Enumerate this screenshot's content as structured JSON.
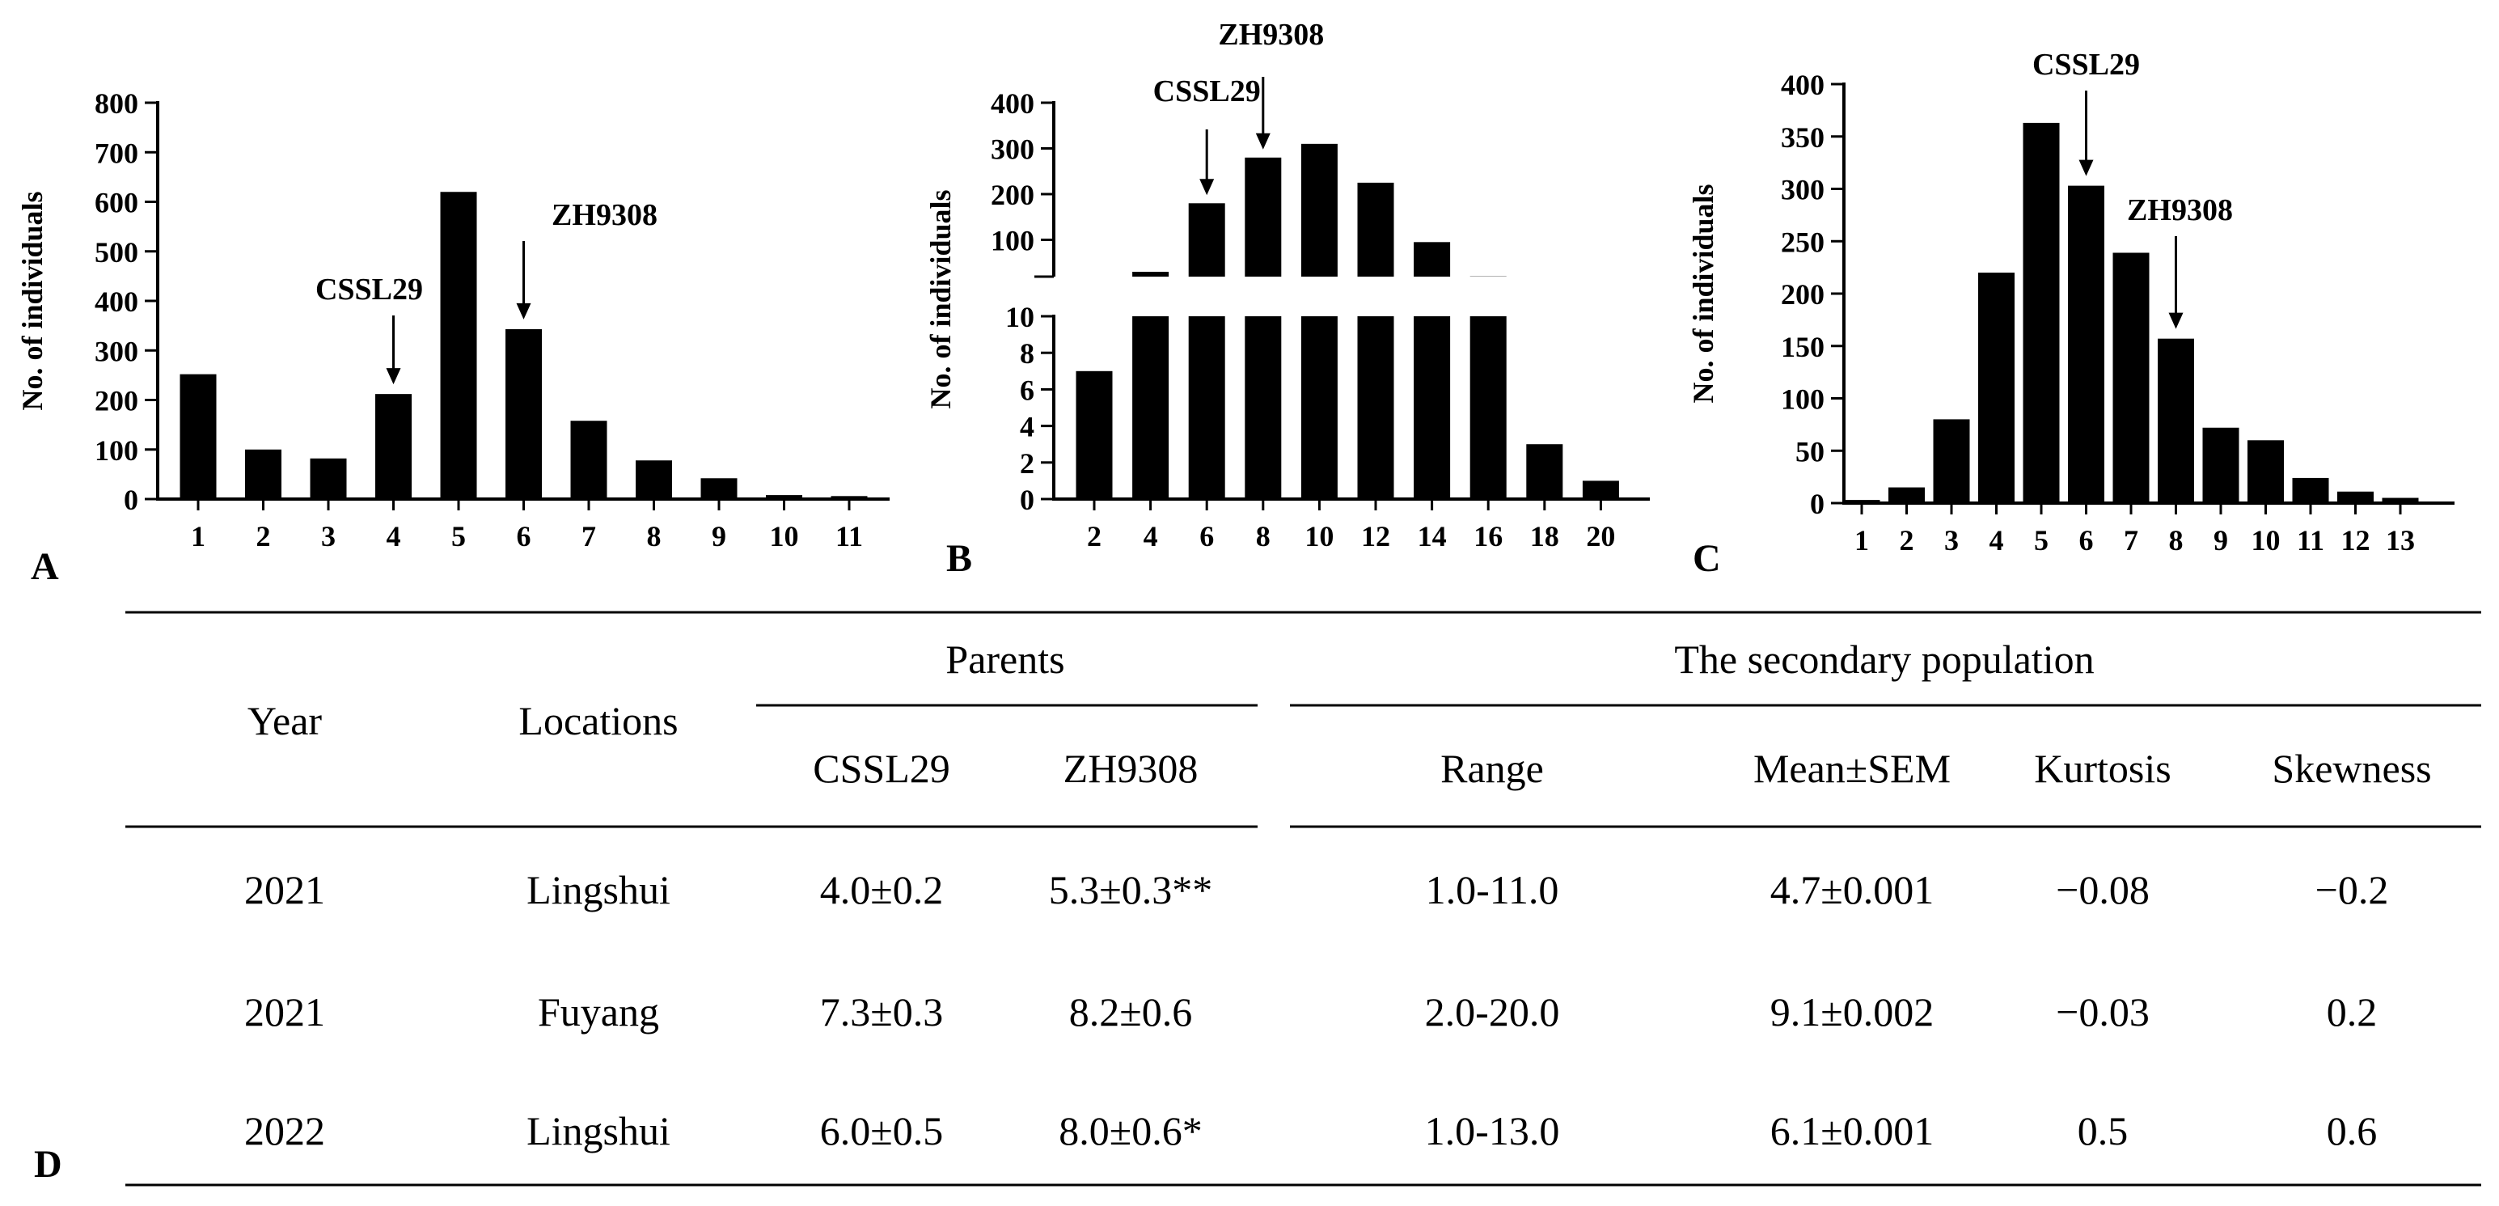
{
  "chart_data": [
    {
      "panel": "A",
      "type": "bar",
      "ylabel": "No. of individuals",
      "xlabel": "",
      "ylim": [
        0,
        800
      ],
      "yticks": [
        0,
        100,
        200,
        300,
        400,
        500,
        600,
        700,
        800
      ],
      "categories": [
        "1",
        "2",
        "3",
        "4",
        "5",
        "6",
        "7",
        "8",
        "9",
        "10",
        "11"
      ],
      "values": [
        252,
        100,
        82,
        212,
        620,
        343,
        158,
        78,
        42,
        8,
        6
      ],
      "annotations": [
        {
          "label": "CSSL29",
          "category": "4"
        },
        {
          "label": "ZH9308",
          "category": "6"
        }
      ]
    },
    {
      "panel": "B",
      "type": "bar",
      "ylabel": "No. of individuals",
      "xlabel": "",
      "broken_axis": true,
      "lower_ylim": [
        0,
        10
      ],
      "upper_ylim": [
        10,
        400
      ],
      "yticks_lower": [
        0,
        2,
        4,
        6,
        8,
        10
      ],
      "yticks_upper": [
        100,
        200,
        300,
        400
      ],
      "categories": [
        "2",
        "4",
        "6",
        "8",
        "10",
        "12",
        "14",
        "16",
        "18",
        "20"
      ],
      "values": [
        7,
        30,
        180,
        280,
        310,
        225,
        95,
        20,
        3,
        1
      ],
      "annotations": [
        {
          "label": "CSSL29",
          "category": "6"
        },
        {
          "label": "ZH9308",
          "category": "8"
        }
      ]
    },
    {
      "panel": "C",
      "type": "bar",
      "ylabel": "No. of individuals",
      "xlabel": "",
      "ylim": [
        0,
        400
      ],
      "yticks": [
        0,
        50,
        100,
        150,
        200,
        250,
        300,
        350,
        400
      ],
      "categories": [
        "1",
        "2",
        "3",
        "4",
        "5",
        "6",
        "7",
        "8",
        "9",
        "10",
        "11",
        "12",
        "13"
      ],
      "values": [
        3,
        15,
        80,
        220,
        363,
        303,
        239,
        157,
        72,
        60,
        24,
        11,
        5
      ],
      "annotations": [
        {
          "label": "CSSL29",
          "category": "6"
        },
        {
          "label": "ZH9308",
          "category": "8"
        }
      ]
    },
    {
      "panel": "D",
      "type": "table",
      "header": {
        "year": "Year",
        "locations": "Locations",
        "parents": "Parents",
        "secondary": "The secondary population",
        "cssl29": "CSSL29",
        "zh9308": "ZH9308",
        "range": "Range",
        "mean": "Mean±SEM",
        "kurtosis": "Kurtosis",
        "skewness": "Skewness"
      },
      "rows": [
        [
          "2021",
          "Lingshui",
          "4.0±0.2",
          "5.3±0.3**",
          "1.0-11.0",
          "4.7±0.001",
          "−0.08",
          "−0.2"
        ],
        [
          "2021",
          "Fuyang",
          "7.3±0.3",
          "8.2±0.6",
          "2.0-20.0",
          "9.1±0.002",
          "−0.03",
          "0.2"
        ],
        [
          "2022",
          "Lingshui",
          "6.0±0.5",
          "8.0±0.6*",
          "1.0-13.0",
          "6.1±0.001",
          "0.5",
          "0.6"
        ]
      ]
    }
  ]
}
